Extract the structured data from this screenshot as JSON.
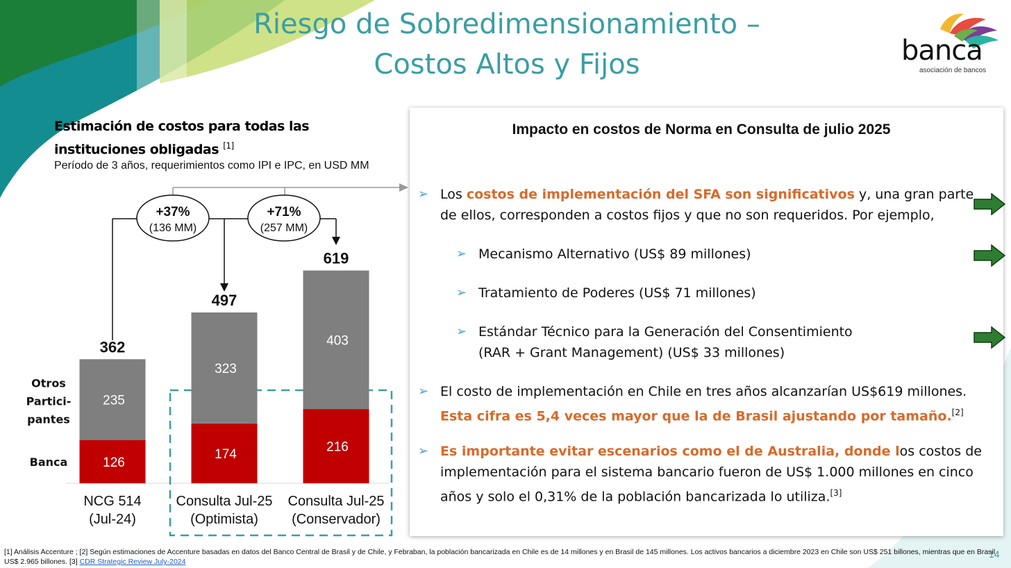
{
  "title_line1": "Riesgo de Sobredimensionamiento –",
  "title_line2": "Costos Altos y Fijos",
  "logo": {
    "word": "banca",
    "sub": "asociación de bancos"
  },
  "chart_heading": "Estimación de costos para todas las instituciones obligadas",
  "chart_heading_ref": "[1]",
  "chart_subheading": "Período de 3 años, requerimientos como IPI e IPC, en USD MM",
  "chart_data": {
    "type": "bar",
    "stacked": true,
    "title": "Estimación de costos para todas las instituciones obligadas",
    "ylabel": "USD MM",
    "categories": [
      "NCG 514 (Jul-24)",
      "Consulta Jul-25 (Optimista)",
      "Consulta Jul-25 (Conservador)"
    ],
    "category_lines": [
      [
        "NCG 514",
        "(Jul-24)"
      ],
      [
        "Consulta Jul-25",
        "(Optimista)"
      ],
      [
        "Consulta Jul-25",
        "(Conservador)"
      ]
    ],
    "series": [
      {
        "name": "Banca",
        "values": [
          126,
          174,
          216
        ],
        "color": "#c00000"
      },
      {
        "name": "Otros Partici- pantes",
        "lines": [
          "Otros",
          "Partici-",
          "pantes"
        ],
        "values": [
          235,
          323,
          403
        ],
        "color": "#7f7f7f"
      }
    ],
    "totals": [
      362,
      497,
      619
    ],
    "ylim": [
      0,
      650
    ],
    "annotations": [
      {
        "label": "+37%",
        "sub": "(136 MM)",
        "from": 0,
        "to": 1
      },
      {
        "label": "+71%",
        "sub": "(257 MM)",
        "from": 0,
        "to": 2
      }
    ],
    "highlight_categories": [
      1,
      2
    ]
  },
  "panel": {
    "title": "Impacto en costos de Norma en Consulta de julio 2025",
    "bullet1_pre": "Los ",
    "bullet1_accent": "costos de implementación del SFA son significativos",
    "bullet1_post": " y, una gran parte de ellos, corresponden a costos fijos y que no son requeridos.  Por ejemplo,",
    "sub1": "Mecanismo Alternativo (US$ 89 millones)",
    "sub2": "Tratamiento de Poderes (US$ 71 millones)",
    "sub3": "Estándar Técnico para la Generación del Consentimiento (RAR + Grant Management) (US$ 33 millones)",
    "bullet2_pre": "El costo de implementación en Chile en tres años alcanzarían US$619 millones. ",
    "bullet2_accent": "Esta cifra es 5,4 veces mayor que la de Brasil ajustando por tamaño.",
    "bullet2_ref": "[2]",
    "bullet3_accent": "Es importante evitar escenarios como el de Australia, donde l",
    "bullet3_post": "os costos de implementación para el sistema bancario fueron de US$ 1.000 millones en cinco años y solo el 0,31% de la población bancarizada lo utiliza.",
    "bullet3_ref": "[3]"
  },
  "footnote": "[1] Análisis Accenture ; [2] Según estimaciones de Accenture basadas en datos del Banco Central de Brasil y de Chile, y Febraban, la población bancarizada en Chile es de 14 millones y en Brasil de 145 millones. Los activos bancarios a diciembre 2023 en Chile son US$ 251 billones, mientras que en Brasil US$ 2.965 billones.  [3] ",
  "footnote_link": "CDR Strategic Review July-2024",
  "page_number": "14",
  "colors": {
    "title": "#3a9ea3",
    "accent": "#d86a2a",
    "banca": "#c00000",
    "otros": "#7f7f7f",
    "arrow": "#2e7d32"
  }
}
